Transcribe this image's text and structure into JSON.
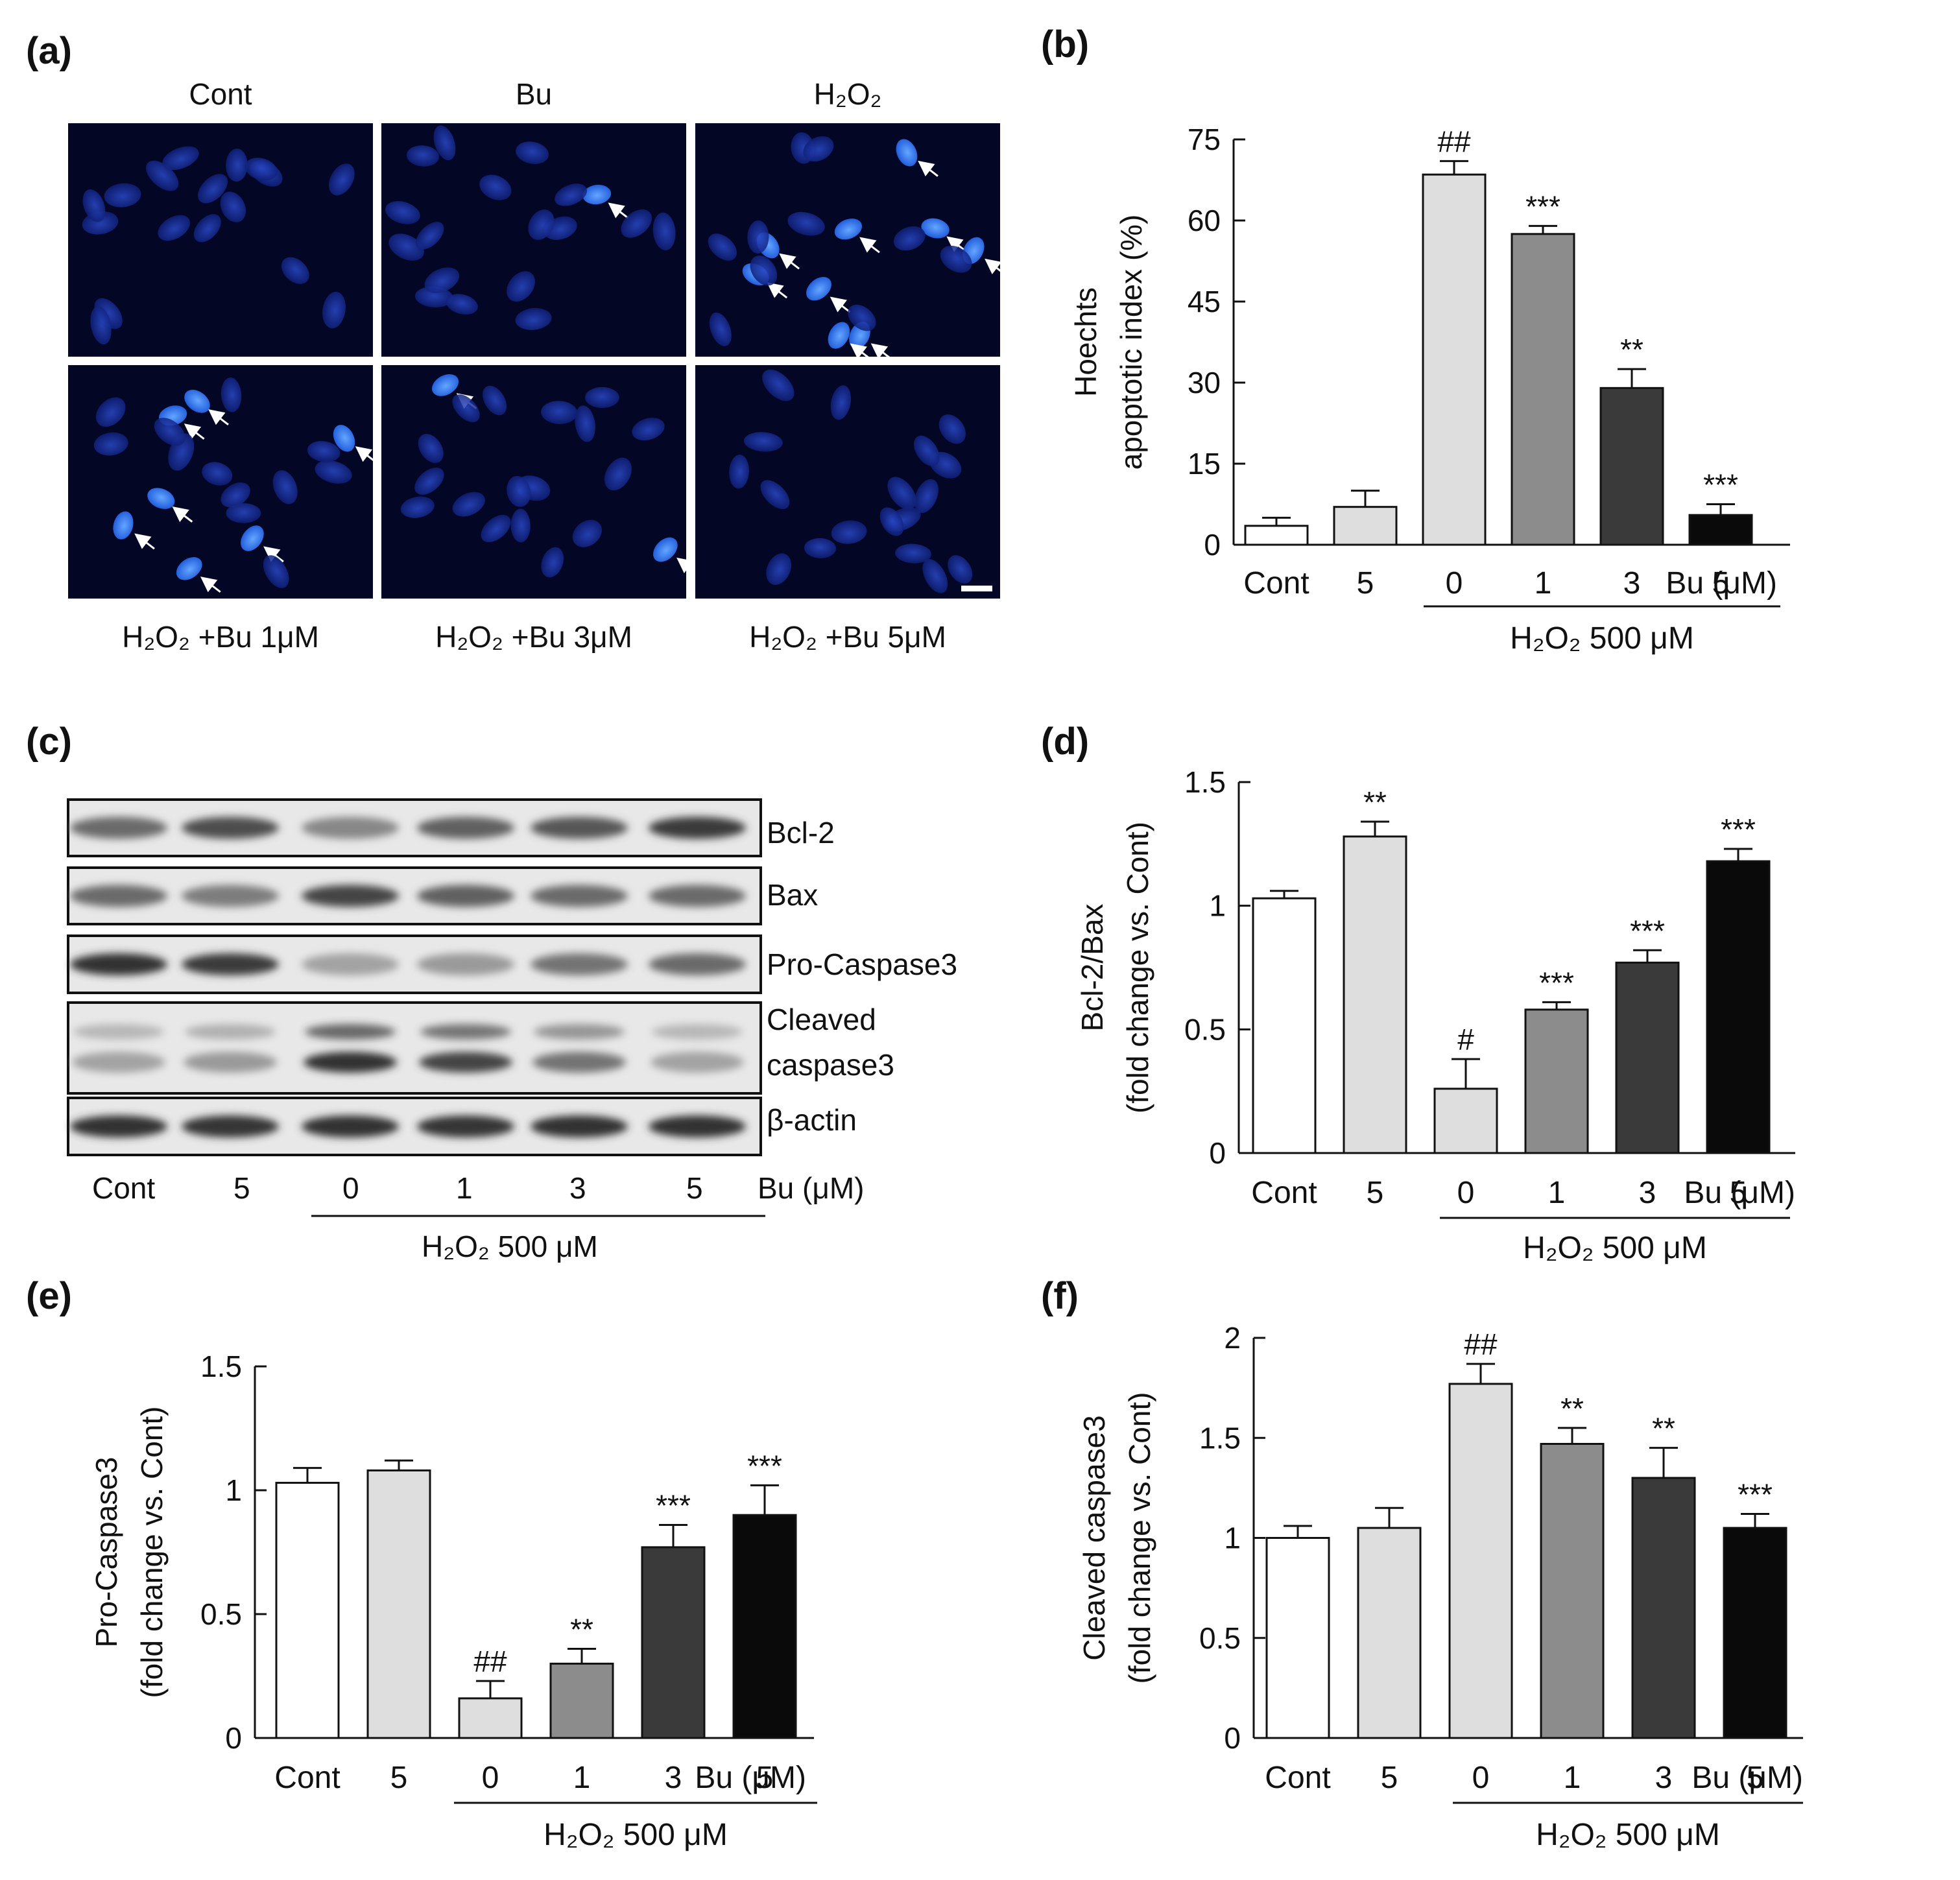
{
  "panels": {
    "a": "(a)",
    "b": "(b)",
    "c": "(c)",
    "d": "(d)",
    "e": "(e)",
    "f": "(f)"
  },
  "micrographs": {
    "top_titles": [
      "Cont",
      "Bu",
      "H₂O₂"
    ],
    "bottom_titles": [
      "H₂O₂ +Bu 1μM",
      "H₂O₂ +Bu 3μM",
      "H₂O₂ +Bu 5μM"
    ]
  },
  "blot": {
    "bands": [
      "Bcl-2",
      "Bax",
      "Pro-Caspase3",
      "Cleaved",
      "caspase3",
      "β-actin"
    ],
    "lanes": [
      "Cont",
      "5",
      "0",
      "1",
      "3",
      "5"
    ],
    "unit": "Bu (μM)",
    "group": "H₂O₂ 500 μM"
  },
  "chart_data": [
    {
      "id": "b",
      "type": "bar",
      "categories": [
        "Cont",
        "5",
        "0",
        "1",
        "3",
        "5"
      ],
      "unit_label": "Bu (μM)",
      "group_label": "H₂O₂ 500 μM",
      "ylabel": [
        "Hoechts",
        "apoptotic index (%)"
      ],
      "ylim": [
        0,
        75
      ],
      "yticks": [
        0,
        15,
        30,
        45,
        60,
        75
      ],
      "values": [
        3.5,
        7,
        68.5,
        57.5,
        29,
        5.5
      ],
      "errors": [
        1.5,
        3,
        2.5,
        1.5,
        3.5,
        2
      ],
      "colors": [
        "#ffffff",
        "#dedede",
        "#dedede",
        "#8c8c8c",
        "#3a3a3a",
        "#0a0a0a"
      ],
      "annotations": [
        "",
        "",
        "##",
        "***",
        "**",
        "***"
      ]
    },
    {
      "id": "d",
      "type": "bar",
      "categories": [
        "Cont",
        "5",
        "0",
        "1",
        "3",
        "5"
      ],
      "unit_label": "Bu (μM)",
      "group_label": "H₂O₂ 500 μM",
      "ylabel": [
        "Bcl-2/Bax",
        "(fold change vs. Cont)"
      ],
      "ylim": [
        0,
        1.5
      ],
      "yticks": [
        0,
        0.5,
        1,
        1.5
      ],
      "values": [
        1.03,
        1.28,
        0.26,
        0.58,
        0.77,
        1.18
      ],
      "errors": [
        0.03,
        0.06,
        0.12,
        0.03,
        0.05,
        0.05
      ],
      "colors": [
        "#ffffff",
        "#dedede",
        "#dedede",
        "#8c8c8c",
        "#3a3a3a",
        "#0a0a0a"
      ],
      "annotations": [
        "",
        "**",
        "#",
        "***",
        "***",
        "***"
      ]
    },
    {
      "id": "e",
      "type": "bar",
      "categories": [
        "Cont",
        "5",
        "0",
        "1",
        "3",
        "5"
      ],
      "unit_label": "Bu (μM)",
      "group_label": "H₂O₂ 500 μM",
      "ylabel": [
        "Pro-Caspase3",
        "(fold change vs. Cont)"
      ],
      "ylim": [
        0,
        1.5
      ],
      "yticks": [
        0,
        0.5,
        1,
        1.5
      ],
      "values": [
        1.03,
        1.08,
        0.16,
        0.3,
        0.77,
        0.9
      ],
      "errors": [
        0.06,
        0.04,
        0.07,
        0.06,
        0.09,
        0.12
      ],
      "colors": [
        "#ffffff",
        "#dedede",
        "#dedede",
        "#8c8c8c",
        "#3a3a3a",
        "#0a0a0a"
      ],
      "annotations": [
        "",
        "",
        "##",
        "**",
        "***",
        "***"
      ]
    },
    {
      "id": "f",
      "type": "bar",
      "categories": [
        "Cont",
        "5",
        "0",
        "1",
        "3",
        "5"
      ],
      "unit_label": "Bu (μM)",
      "group_label": "H₂O₂ 500 μM",
      "ylabel": [
        "Cleaved caspase3",
        "(fold change vs. Cont)"
      ],
      "ylim": [
        0,
        2
      ],
      "yticks": [
        0,
        0.5,
        1,
        1.5,
        2
      ],
      "values": [
        1.0,
        1.05,
        1.77,
        1.47,
        1.3,
        1.05
      ],
      "errors": [
        0.06,
        0.1,
        0.1,
        0.08,
        0.15,
        0.07
      ],
      "colors": [
        "#ffffff",
        "#dedede",
        "#dedede",
        "#8c8c8c",
        "#3a3a3a",
        "#0a0a0a"
      ],
      "annotations": [
        "",
        "",
        "##",
        "**",
        "**",
        "***"
      ]
    }
  ]
}
